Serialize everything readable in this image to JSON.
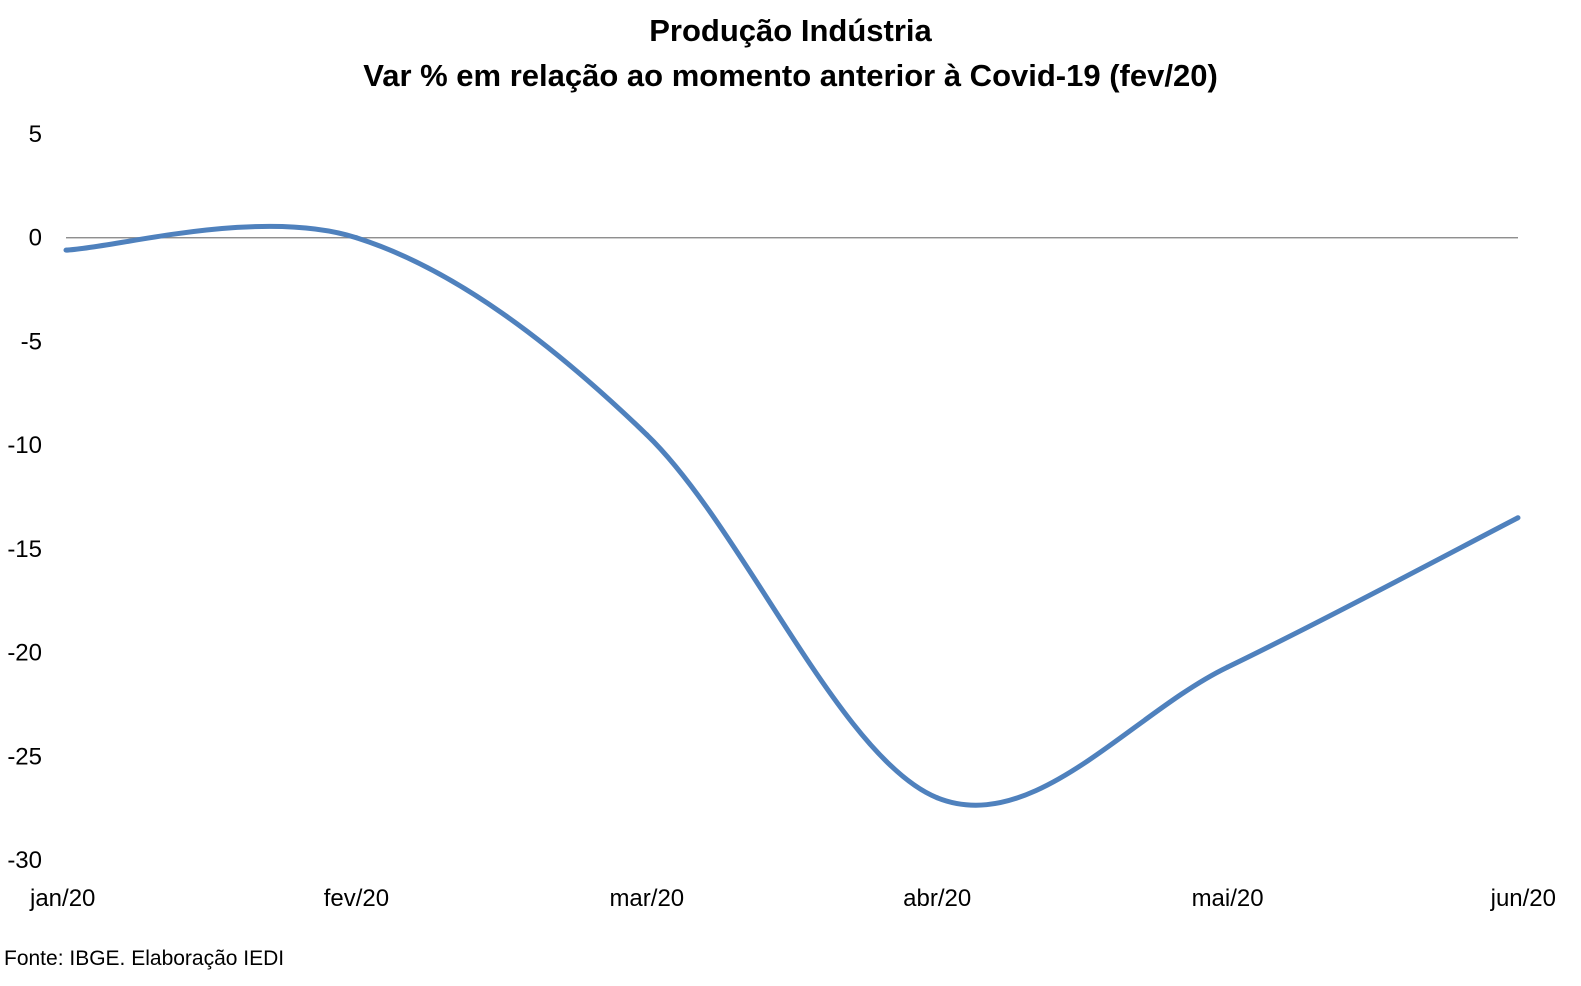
{
  "chart_data": {
    "type": "line",
    "title": "Produção Indústria",
    "subtitle": "Var % em relação ao momento anterior à Covid-19 (fev/20)",
    "categories": [
      "jan/20",
      "fev/20",
      "mar/20",
      "abr/20",
      "mai/20",
      "jun/20"
    ],
    "series": [
      {
        "values": [
          -0.6,
          0.0,
          -9.5,
          -27.0,
          -20.7,
          -13.5
        ]
      }
    ],
    "ylim": [
      -30,
      5
    ],
    "yticks": [
      5,
      0,
      -5,
      -10,
      -15,
      -20,
      -25,
      -30
    ],
    "line_color": "#4f81bd",
    "zero_line_color": "#7f7f7f",
    "smoothed": true,
    "grid": false,
    "legend": "none"
  },
  "source": "Fonte: IBGE. Elaboração IEDI"
}
